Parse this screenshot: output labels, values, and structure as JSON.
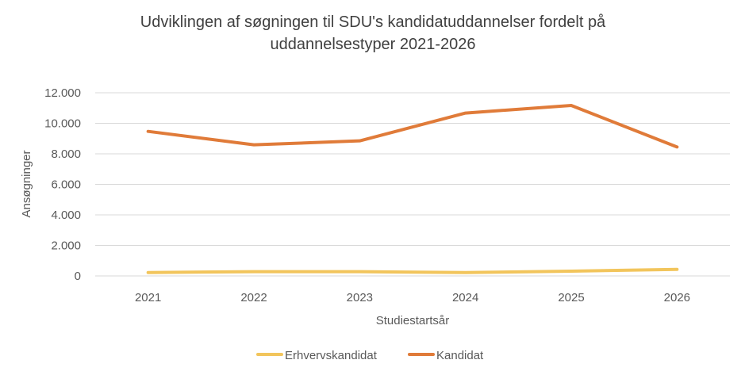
{
  "chart_data": {
    "type": "line",
    "title": "Udviklingen af søgningen til SDU's kandidatuddannelser fordelt på uddannelsestyper 2021-2026",
    "title_lines": [
      "Udviklingen af søgningen til SDU's kandidatuddannelser fordelt på",
      "uddannelsestyper 2021-2026"
    ],
    "xlabel": "Studiestartsår",
    "ylabel": "Ansøgninger",
    "categories": [
      "2021",
      "2022",
      "2023",
      "2024",
      "2025",
      "2026"
    ],
    "ylim": [
      0,
      12000
    ],
    "yticks": [
      0,
      2000,
      4000,
      6000,
      8000,
      10000,
      12000
    ],
    "ytick_labels": [
      "0",
      "2.000",
      "4.000",
      "6.000",
      "8.000",
      "10.000",
      "12.000"
    ],
    "grid": true,
    "legend_position": "bottom",
    "series": [
      {
        "name": "Erhvervskandidat",
        "color": "#F2C55C",
        "values": [
          220,
          280,
          280,
          220,
          310,
          430
        ]
      },
      {
        "name": "Kandidat",
        "color": "#E07B39",
        "values": [
          9470,
          8590,
          8850,
          10670,
          11170,
          8450
        ]
      }
    ]
  }
}
